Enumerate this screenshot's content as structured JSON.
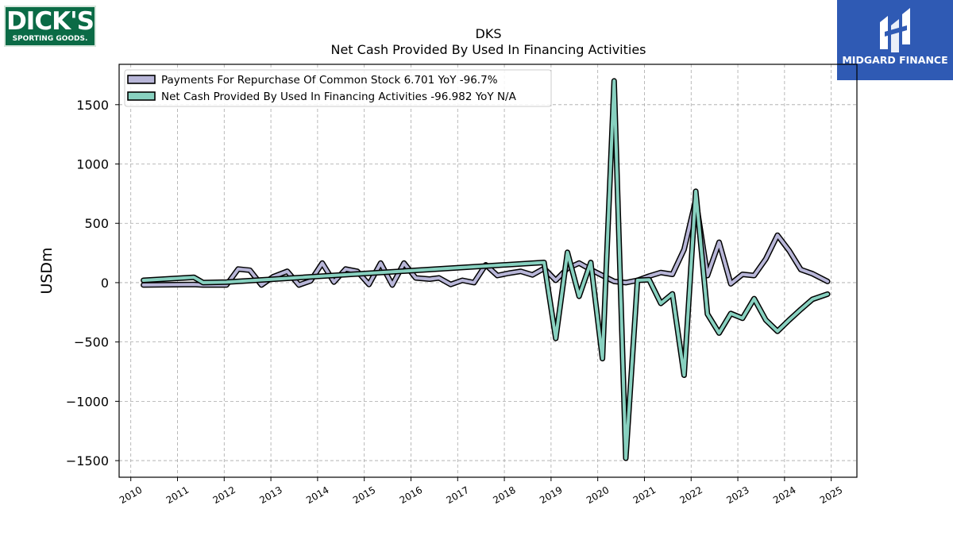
{
  "logos": {
    "left_word": "DICK'S",
    "left_sub": "SPORTING GOODS.",
    "right_name": "MIDGARD FINANCE"
  },
  "chart_data": {
    "type": "line",
    "title": "DKS",
    "subtitle": "Net Cash Provided By Used In Financing Activities",
    "xlabel": "",
    "ylabel": "USDm",
    "xlim": [
      2009.75,
      2025.55
    ],
    "ylim": [
      -1640,
      1840
    ],
    "yticks": [
      -1500,
      -1000,
      -500,
      0,
      500,
      1000,
      1500
    ],
    "yticklabels": [
      "−1500",
      "−1000",
      "−500",
      "0",
      "500",
      "1000",
      "1500"
    ],
    "xticks": [
      2010,
      2011,
      2012,
      2013,
      2014,
      2015,
      2016,
      2017,
      2018,
      2019,
      2020,
      2021,
      2022,
      2023,
      2024,
      2025
    ],
    "xticklabels": [
      "2010",
      "2011",
      "2012",
      "2013",
      "2014",
      "2015",
      "2016",
      "2017",
      "2018",
      "2019",
      "2020",
      "2021",
      "2022",
      "2023",
      "2024",
      "2025"
    ],
    "grid": true,
    "legend_position": "top-left",
    "series": [
      {
        "name": "Payments For Repurchase Of Common Stock  6.701 YoY -96.7%",
        "color": "#b8b6d8",
        "points": [
          [
            2010.27,
            -20
          ],
          [
            2011.35,
            -15
          ],
          [
            2011.55,
            -20
          ],
          [
            2012.05,
            -20
          ],
          [
            2012.3,
            115
          ],
          [
            2012.55,
            105
          ],
          [
            2012.8,
            -20
          ],
          [
            2013.05,
            50
          ],
          [
            2013.35,
            95
          ],
          [
            2013.6,
            -20
          ],
          [
            2013.85,
            15
          ],
          [
            2014.1,
            165
          ],
          [
            2014.35,
            5
          ],
          [
            2014.6,
            115
          ],
          [
            2014.85,
            95
          ],
          [
            2015.1,
            -15
          ],
          [
            2015.35,
            165
          ],
          [
            2015.6,
            -20
          ],
          [
            2015.85,
            165
          ],
          [
            2016.1,
            40
          ],
          [
            2016.4,
            30
          ],
          [
            2016.6,
            40
          ],
          [
            2016.85,
            -15
          ],
          [
            2017.1,
            20
          ],
          [
            2017.35,
            0
          ],
          [
            2017.6,
            150
          ],
          [
            2017.85,
            60
          ],
          [
            2018.1,
            80
          ],
          [
            2018.35,
            95
          ],
          [
            2018.6,
            65
          ],
          [
            2018.85,
            120
          ],
          [
            2019.1,
            20
          ],
          [
            2019.35,
            120
          ],
          [
            2019.6,
            165
          ],
          [
            2019.85,
            110
          ],
          [
            2020.1,
            60
          ],
          [
            2020.35,
            10
          ],
          [
            2020.6,
            0
          ],
          [
            2020.85,
            20
          ],
          [
            2021.1,
            55
          ],
          [
            2021.35,
            85
          ],
          [
            2021.6,
            70
          ],
          [
            2021.85,
            280
          ],
          [
            2022.1,
            700
          ],
          [
            2022.35,
            60
          ],
          [
            2022.6,
            340
          ],
          [
            2022.85,
            -10
          ],
          [
            2023.1,
            70
          ],
          [
            2023.35,
            60
          ],
          [
            2023.6,
            200
          ],
          [
            2023.85,
            400
          ],
          [
            2024.1,
            270
          ],
          [
            2024.35,
            110
          ],
          [
            2024.6,
            75
          ],
          [
            2024.92,
            10
          ]
        ]
      },
      {
        "name": "Net Cash Provided By Used In Financing Activities  -96.982 YoY N/A",
        "color": "#88d1c0",
        "points": [
          [
            2010.27,
            20
          ],
          [
            2011.35,
            45
          ],
          [
            2011.55,
            0
          ],
          [
            2012.05,
            5
          ],
          [
            2018.85,
            170
          ],
          [
            2019.1,
            -470
          ],
          [
            2019.35,
            255
          ],
          [
            2019.6,
            -115
          ],
          [
            2019.85,
            170
          ],
          [
            2020.1,
            -640
          ],
          [
            2020.35,
            1700
          ],
          [
            2020.6,
            -1480
          ],
          [
            2020.85,
            20
          ],
          [
            2021.1,
            25
          ],
          [
            2021.35,
            -175
          ],
          [
            2021.6,
            -95
          ],
          [
            2021.85,
            -780
          ],
          [
            2022.1,
            770
          ],
          [
            2022.35,
            -265
          ],
          [
            2022.6,
            -425
          ],
          [
            2022.85,
            -260
          ],
          [
            2023.1,
            -300
          ],
          [
            2023.35,
            -135
          ],
          [
            2023.6,
            -315
          ],
          [
            2023.85,
            -410
          ],
          [
            2024.1,
            -315
          ],
          [
            2024.35,
            -225
          ],
          [
            2024.6,
            -140
          ],
          [
            2024.92,
            -97
          ]
        ]
      }
    ]
  }
}
